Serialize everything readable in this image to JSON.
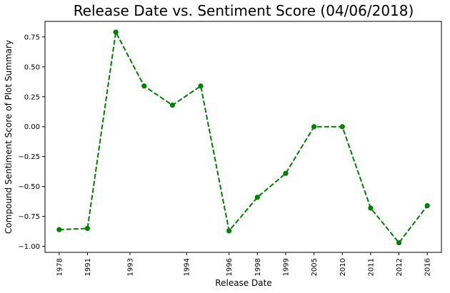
{
  "chart_data": {
    "type": "line",
    "title": "Release Date vs. Sentiment Score (04/06/2018)",
    "xlabel": "Release Date",
    "ylabel": "Compound Sentiment Score of Plot Summary",
    "categories": [
      "1978",
      "1991",
      "1993",
      "1993",
      "1994",
      "1994",
      "1996",
      "1998",
      "1999",
      "2005",
      "2010",
      "2011",
      "2012",
      "2016"
    ],
    "x_ticks": [
      "1978",
      "1991",
      "1993",
      "1994",
      "1996",
      "1998",
      "1999",
      "2005",
      "2010",
      "2011",
      "2012",
      "2016"
    ],
    "series": [
      {
        "values": [
          -0.86,
          -0.85,
          0.79,
          0.34,
          0.18,
          0.34,
          -0.87,
          -0.59,
          -0.39,
          0.0,
          0.0,
          -0.68,
          -0.97,
          -0.66
        ],
        "color": "#008000",
        "line_style": "dashed",
        "marker": "circle"
      }
    ],
    "ylim": [
      -1.05,
      0.88
    ],
    "y_ticks": [
      -1.0,
      -0.75,
      -0.5,
      -0.25,
      0.0,
      0.25,
      0.5,
      0.75
    ],
    "y_tick_labels": [
      "−1.00",
      "−0.75",
      "−0.50",
      "−0.25",
      "0.00",
      "0.25",
      "0.50",
      "0.75"
    ],
    "grid": false,
    "legend": "none"
  }
}
